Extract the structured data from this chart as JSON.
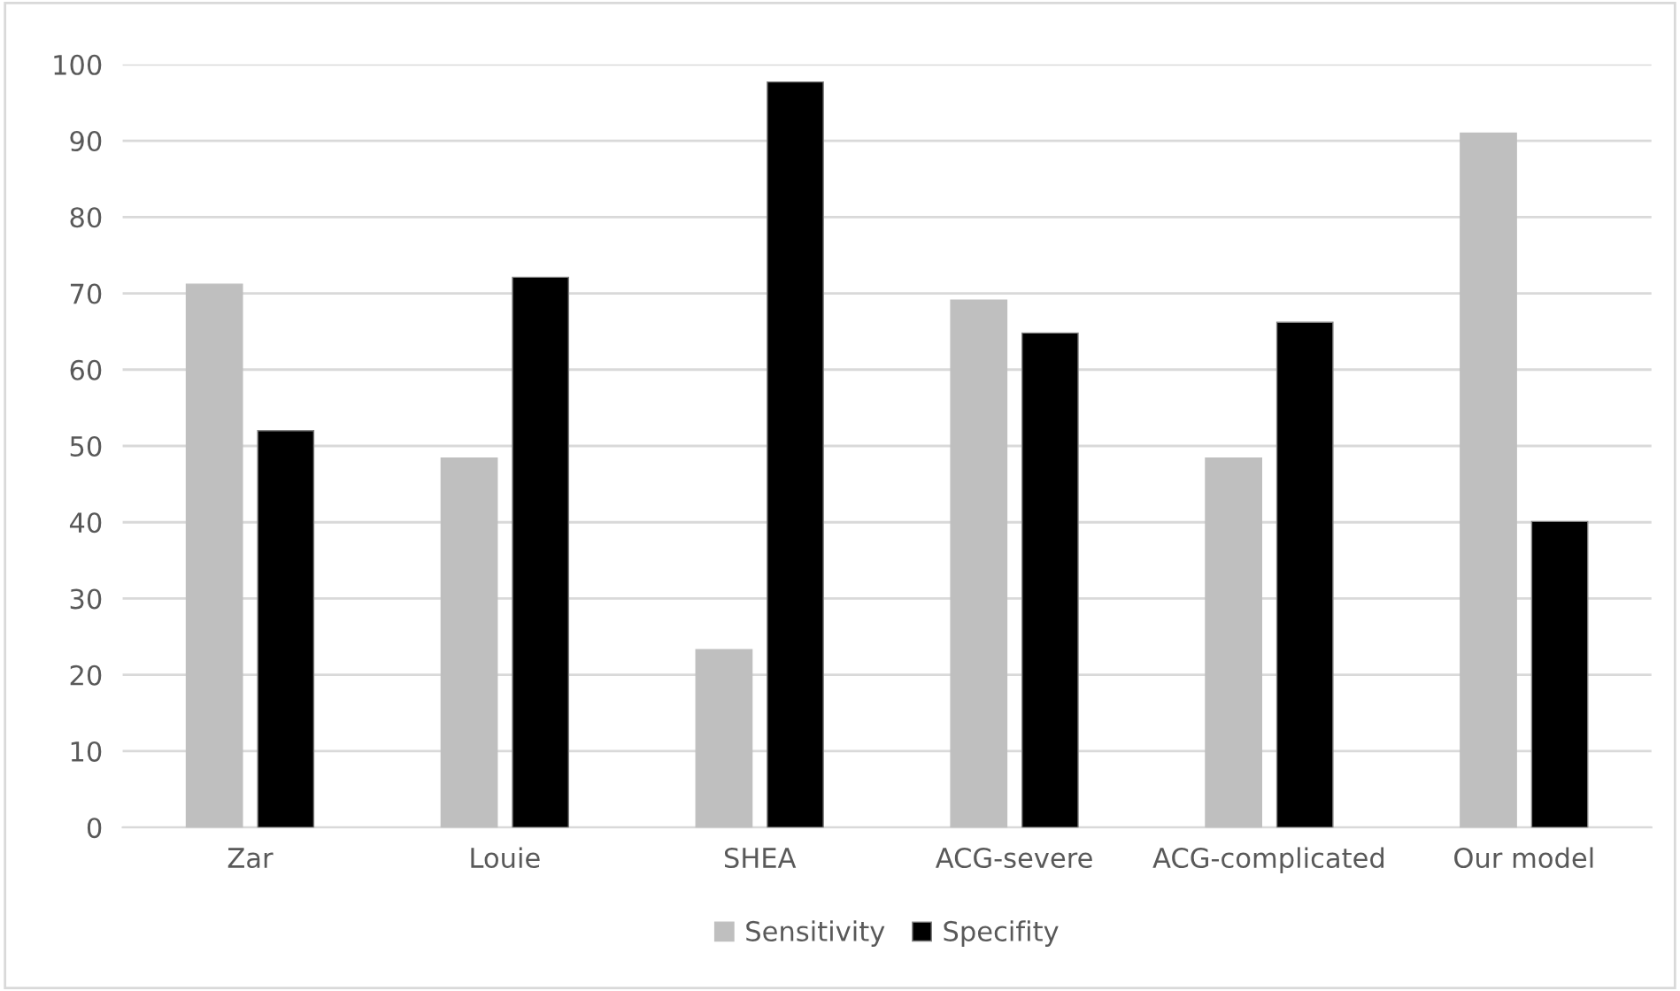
{
  "chart_data": {
    "type": "bar",
    "categories": [
      "Zar",
      "Louie",
      "SHEA",
      "ACG-severe",
      "ACG-complicated",
      "Our model"
    ],
    "series": [
      {
        "name": "Sensitivity",
        "color": "#bfbfbf",
        "values": [
          71.2,
          48.4,
          23.3,
          69.1,
          48.4,
          91.0
        ]
      },
      {
        "name": "Specifity",
        "color": "#000000",
        "values": [
          52.0,
          72.1,
          97.7,
          64.8,
          66.2,
          40.1
        ]
      }
    ],
    "ylim": [
      0,
      100
    ],
    "yticks": [
      0,
      10,
      20,
      30,
      40,
      50,
      60,
      70,
      80,
      90,
      100
    ],
    "grid": "y",
    "legend": "bottom"
  }
}
